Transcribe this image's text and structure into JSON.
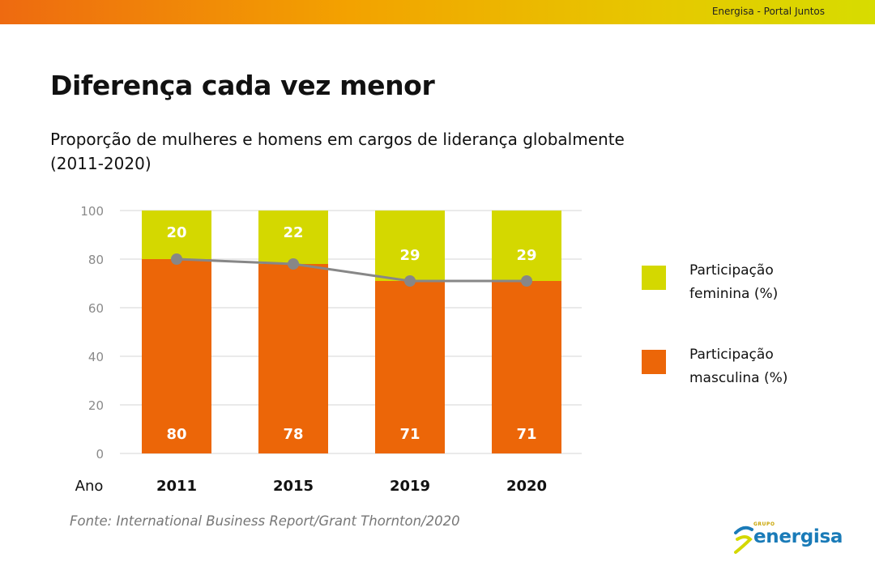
{
  "header": {
    "site_label": "Energisa - Portal Juntos"
  },
  "title": "Diferença cada vez menor",
  "subtitle": "Proporção de mulheres e homens em cargos de liderança globalmente (2011-2020)",
  "source": "Fonte: International Business Report/Grant Thornton/2020",
  "legend": {
    "female_label": "Participação feminina (%)",
    "male_label": "Participação masculina (%)"
  },
  "logo": {
    "small_text": "GRUPO",
    "word": "energisa"
  },
  "colors": {
    "female": "#d4d800",
    "male": "#ec6608",
    "line": "#878787",
    "grid": "#d6d6d6",
    "axis_text": "#8a8a8a"
  },
  "chart_data": {
    "type": "bar",
    "stacked": true,
    "xlabel": "Ano",
    "categories": [
      "2011",
      "2015",
      "2019",
      "2020"
    ],
    "series": [
      {
        "name": "Participação masculina (%)",
        "values": [
          80,
          78,
          71,
          71
        ]
      },
      {
        "name": "Participação feminina (%)",
        "values": [
          20,
          22,
          29,
          29
        ]
      }
    ],
    "line": {
      "values": [
        80,
        78,
        71,
        71
      ]
    },
    "ylim": [
      0,
      100
    ],
    "yticks": [
      0,
      20,
      40,
      60,
      80,
      100
    ],
    "grid": true,
    "legend_position": "right"
  }
}
